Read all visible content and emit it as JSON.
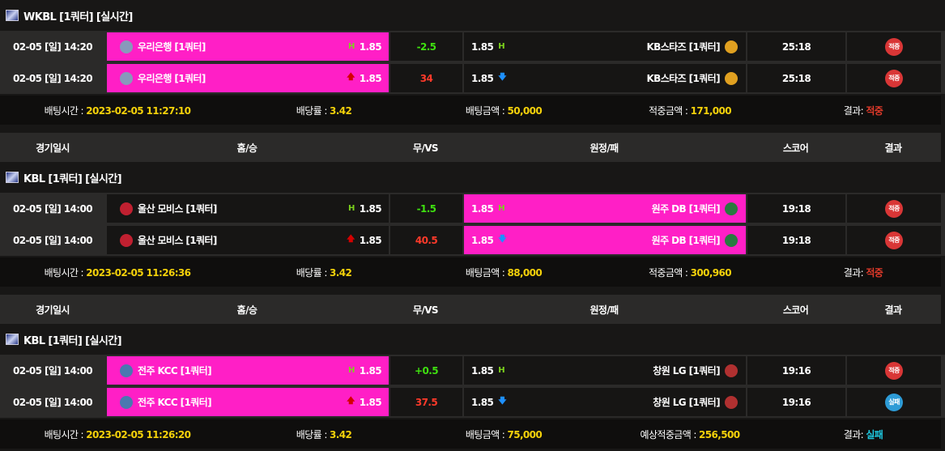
{
  "header": {
    "date": "경기일시",
    "home": "홈/승",
    "draw": "무/VS",
    "away": "원정/패",
    "score": "스코어",
    "result": "결과"
  },
  "sections": [
    {
      "league": "WKBL [1쿼터] [실시간]",
      "rows": [
        {
          "date": "02-05 [일] 14:20",
          "home": "우리은행 [1쿼터]",
          "home_odds": "1.85",
          "home_ind": "h",
          "draw": "-2.5",
          "draw_color": "pos",
          "away_odds": "1.85",
          "away_ind": "h",
          "away": "KB스타즈 [1쿼터]",
          "score": "25:18",
          "result": "적중",
          "result_type": "win",
          "pick": "home",
          "home_logo": "#8899bb",
          "away_logo": "#e0a020"
        },
        {
          "date": "02-05 [일] 14:20",
          "home": "우리은행 [1쿼터]",
          "home_odds": "1.85",
          "home_ind": "up",
          "draw": "34",
          "draw_color": "neg",
          "away_odds": "1.85",
          "away_ind": "down",
          "away": "KB스타즈 [1쿼터]",
          "score": "25:18",
          "result": "적중",
          "result_type": "win",
          "pick": "home",
          "home_logo": "#8899bb",
          "away_logo": "#e0a020"
        }
      ],
      "summary": {
        "time_label": "배팅시간 : ",
        "time": "2023-02-05 11:27:10",
        "rate_label": "배당률 : ",
        "rate": "3.42",
        "amount_label": "배팅금액 : ",
        "amount": "50,000",
        "win_label": "적중금액 : ",
        "win": "171,000",
        "result_label": "결과: ",
        "result": "적중",
        "result_type": "win"
      }
    },
    {
      "league": "KBL [1쿼터] [실시간]",
      "rows": [
        {
          "date": "02-05 [일] 14:00",
          "home": "울산 모비스 [1쿼터]",
          "home_odds": "1.85",
          "home_ind": "h",
          "draw": "-1.5",
          "draw_color": "pos",
          "away_odds": "1.85",
          "away_ind": "h",
          "away": "원주 DB [1쿼터]",
          "score": "19:18",
          "result": "적중",
          "result_type": "win",
          "pick": "away",
          "home_logo": "#c02030",
          "away_logo": "#2a7a40"
        },
        {
          "date": "02-05 [일] 14:00",
          "home": "울산 모비스 [1쿼터]",
          "home_odds": "1.85",
          "home_ind": "up",
          "draw": "40.5",
          "draw_color": "neg",
          "away_odds": "1.85",
          "away_ind": "down",
          "away": "원주 DB [1쿼터]",
          "score": "19:18",
          "result": "적중",
          "result_type": "win",
          "pick": "away",
          "home_logo": "#c02030",
          "away_logo": "#2a7a40"
        }
      ],
      "summary": {
        "time_label": "배팅시간 : ",
        "time": "2023-02-05 11:26:36",
        "rate_label": "배당률 : ",
        "rate": "3.42",
        "amount_label": "배팅금액 : ",
        "amount": "88,000",
        "win_label": "적중금액 : ",
        "win": "300,960",
        "result_label": "결과: ",
        "result": "적중",
        "result_type": "win"
      }
    },
    {
      "league": "KBL [1쿼터] [실시간]",
      "rows": [
        {
          "date": "02-05 [일] 14:00",
          "home": "전주 KCC [1쿼터]",
          "home_odds": "1.85",
          "home_ind": "h",
          "draw": "+0.5",
          "draw_color": "pos",
          "away_odds": "1.85",
          "away_ind": "h",
          "away": "창원 LG [1쿼터]",
          "score": "19:16",
          "result": "적중",
          "result_type": "win",
          "pick": "home",
          "home_logo": "#4a78b0",
          "away_logo": "#b03030"
        },
        {
          "date": "02-05 [일] 14:00",
          "home": "전주 KCC [1쿼터]",
          "home_odds": "1.85",
          "home_ind": "up",
          "draw": "37.5",
          "draw_color": "neg",
          "away_odds": "1.85",
          "away_ind": "down",
          "away": "창원 LG [1쿼터]",
          "score": "19:16",
          "result": "실패",
          "result_type": "lose",
          "pick": "home",
          "home_logo": "#4a78b0",
          "away_logo": "#b03030"
        }
      ],
      "summary": {
        "time_label": "배팅시간 : ",
        "time": "2023-02-05 11:26:20",
        "rate_label": "배당률 : ",
        "rate": "3.42",
        "amount_label": "배팅금액 : ",
        "amount": "75,000",
        "win_label": "예상적중금액 : ",
        "win": "256,500",
        "result_label": "결과: ",
        "result": "실패",
        "result_type": "lose"
      }
    }
  ],
  "indicators": {
    "h": "H",
    "up": "🡅",
    "down": "🡇"
  }
}
